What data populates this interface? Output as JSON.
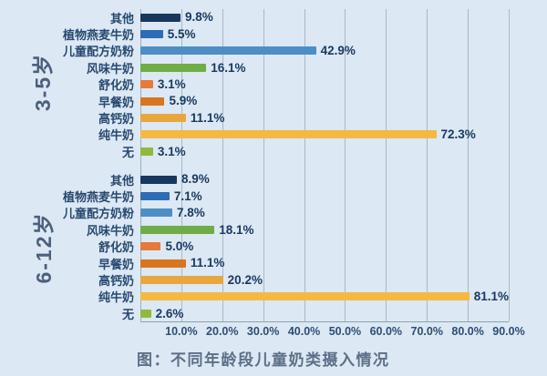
{
  "chart_data": {
    "type": "bar",
    "orientation": "horizontal",
    "title": "图：不同年龄段儿童奶类摄入情况",
    "categories": [
      "其他",
      "植物燕麦牛奶",
      "儿童配方奶粉",
      "风味牛奶",
      "舒化奶",
      "早餐奶",
      "高钙奶",
      "纯牛奶",
      "无"
    ],
    "category_colors": [
      "#17375e",
      "#2e6cb5",
      "#4e8ec5",
      "#6fad47",
      "#e6793c",
      "#d97420",
      "#eaa63e",
      "#f4b942",
      "#92b93e"
    ],
    "series": [
      {
        "name": "3-5岁",
        "values": [
          9.8,
          5.5,
          42.9,
          16.1,
          3.1,
          5.9,
          11.1,
          72.3,
          3.1
        ],
        "labels": [
          "9.8%",
          "5.5%",
          "42.9%",
          "16.1%",
          "3.1%",
          "5.9%",
          "11.1%",
          "72.3%",
          "3.1%"
        ]
      },
      {
        "name": "6-12岁",
        "values": [
          8.9,
          7.1,
          7.8,
          18.1,
          5.0,
          11.1,
          20.2,
          81.1,
          2.6
        ],
        "labels": [
          "8.9%",
          "7.1%",
          "7.8%",
          "18.1%",
          "5.0%",
          "11.1%",
          "20.2%",
          "81.1%",
          "2.6%"
        ]
      }
    ],
    "value_axis": {
      "min": 0,
      "max": 90,
      "tick_labels": [
        "10.0%",
        "20.0%",
        "30.0%",
        "40.0%",
        "50.0%",
        "60.0%",
        "70.0%",
        "80.0%",
        "90.0%"
      ],
      "grid": true
    },
    "legend": "none"
  },
  "style": {
    "background": "#dce8f3",
    "grid_color": "#aab8c6",
    "axis_color": "#8fa3b5",
    "category_label_color": "#27486f",
    "value_label_color": "#1a3a62",
    "tick_label_color": "#2d4d74",
    "group_label_color": "#4c5f7e",
    "caption_color": "#5d6f88"
  }
}
